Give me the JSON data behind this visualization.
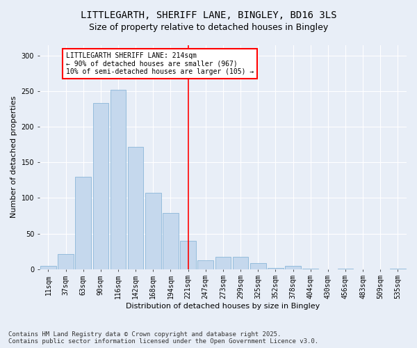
{
  "title": "LITTLEGARTH, SHERIFF LANE, BINGLEY, BD16 3LS",
  "subtitle": "Size of property relative to detached houses in Bingley",
  "xlabel": "Distribution of detached houses by size in Bingley",
  "ylabel": "Number of detached properties",
  "categories": [
    "11sqm",
    "37sqm",
    "63sqm",
    "90sqm",
    "116sqm",
    "142sqm",
    "168sqm",
    "194sqm",
    "221sqm",
    "247sqm",
    "273sqm",
    "299sqm",
    "325sqm",
    "352sqm",
    "378sqm",
    "404sqm",
    "430sqm",
    "456sqm",
    "483sqm",
    "509sqm",
    "535sqm"
  ],
  "values": [
    4,
    21,
    130,
    234,
    252,
    172,
    107,
    79,
    40,
    12,
    17,
    17,
    8,
    2,
    4,
    1,
    0,
    1,
    0,
    0,
    1
  ],
  "bar_color": "#c5d8ed",
  "bar_edge_color": "#7baed4",
  "bg_color": "#e8eef7",
  "grid_color": "#ffffff",
  "vline_color": "red",
  "annotation_text": "LITTLEGARTH SHERIFF LANE: 214sqm\n← 90% of detached houses are smaller (967)\n10% of semi-detached houses are larger (105) →",
  "annotation_box_color": "#ffffff",
  "annotation_box_edge": "red",
  "ylim": [
    0,
    315
  ],
  "yticks": [
    0,
    50,
    100,
    150,
    200,
    250,
    300
  ],
  "footer": "Contains HM Land Registry data © Crown copyright and database right 2025.\nContains public sector information licensed under the Open Government Licence v3.0.",
  "title_fontsize": 10,
  "subtitle_fontsize": 9,
  "axis_label_fontsize": 8,
  "tick_fontsize": 7,
  "annotation_fontsize": 7,
  "footer_fontsize": 6.5
}
